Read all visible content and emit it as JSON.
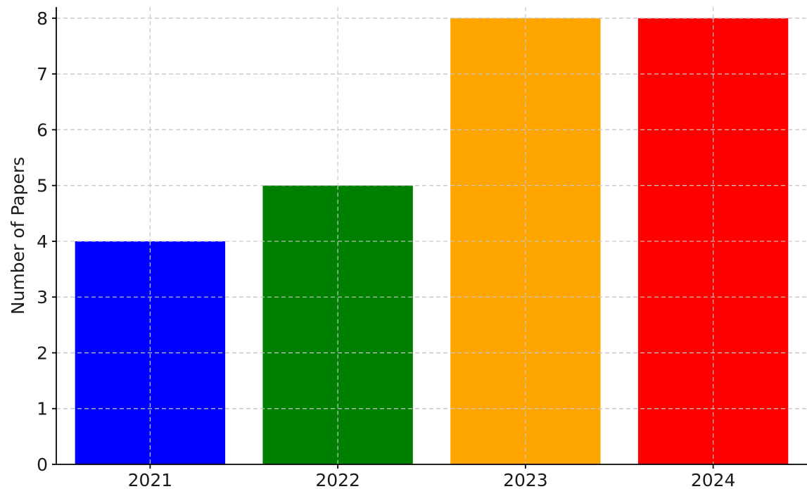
{
  "chart_data": {
    "type": "bar",
    "title": "",
    "xlabel": "",
    "ylabel": "Number of Papers",
    "categories": [
      "2021",
      "2022",
      "2023",
      "2024"
    ],
    "values": [
      4,
      5,
      8,
      8
    ],
    "colors": [
      "#0000ff",
      "#008000",
      "#ffa500",
      "#ff0000"
    ],
    "ylim": [
      0,
      8.2
    ],
    "yticks": [
      0,
      1,
      2,
      3,
      4,
      5,
      6,
      7,
      8
    ],
    "grid": true,
    "legend": "none"
  }
}
